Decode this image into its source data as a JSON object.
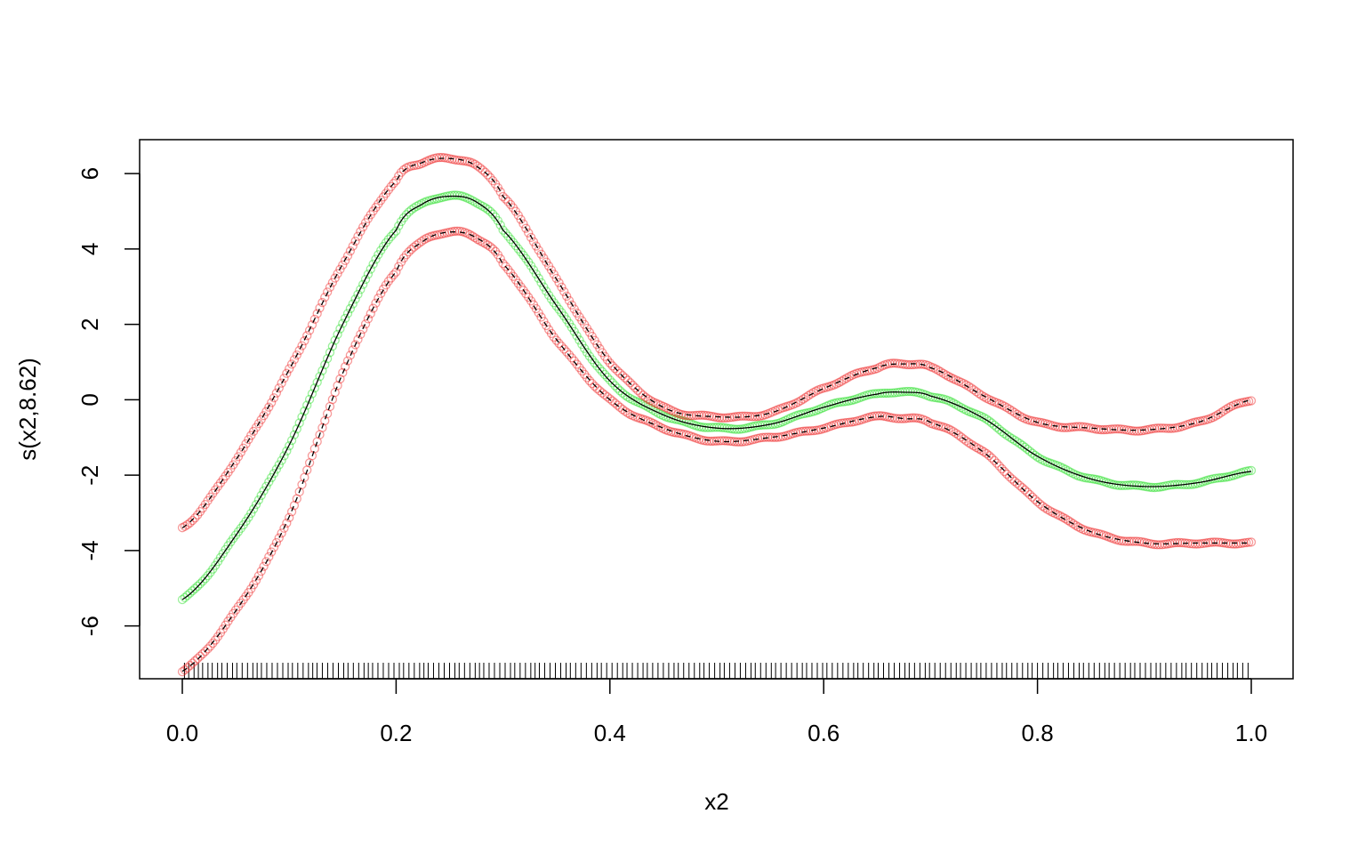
{
  "chart_data": {
    "type": "line",
    "title": "",
    "xlabel": "x2",
    "ylabel": "s(x2,8.62)",
    "xlim": [
      0.0,
      1.0
    ],
    "ylim": [
      -7.4,
      6.9
    ],
    "x_ticks": [
      "0.0",
      "0.2",
      "0.4",
      "0.6",
      "0.8",
      "1.0"
    ],
    "y_ticks": [
      "-6",
      "-4",
      "-2",
      "0",
      "2",
      "4",
      "6"
    ],
    "grid": false,
    "legend": "none",
    "series": [
      {
        "role": "estimate",
        "line_color": "#000000",
        "point_color": "#22dd22",
        "x": [
          0.0,
          0.05,
          0.1,
          0.15,
          0.2,
          0.225,
          0.25,
          0.275,
          0.3,
          0.35,
          0.4,
          0.45,
          0.5,
          0.55,
          0.6,
          0.65,
          0.675,
          0.7,
          0.75,
          0.8,
          0.85,
          0.9,
          0.95,
          1.0
        ],
        "y": [
          -5.3,
          -3.6,
          -1.2,
          2.0,
          4.5,
          5.2,
          5.4,
          5.25,
          4.5,
          2.5,
          0.5,
          -0.4,
          -0.75,
          -0.65,
          -0.2,
          0.15,
          0.2,
          0.1,
          -0.5,
          -1.5,
          -2.1,
          -2.3,
          -2.2,
          -1.9
        ]
      },
      {
        "role": "upper-band",
        "line_color": "#000000",
        "line_style": "dashed",
        "point_color": "#ee2222",
        "x": [
          0.0,
          0.05,
          0.1,
          0.15,
          0.2,
          0.225,
          0.25,
          0.275,
          0.3,
          0.35,
          0.4,
          0.45,
          0.5,
          0.55,
          0.6,
          0.65,
          0.675,
          0.7,
          0.75,
          0.8,
          0.85,
          0.9,
          0.95,
          1.0
        ],
        "y": [
          -3.4,
          -1.6,
          0.8,
          3.6,
          5.8,
          6.3,
          6.4,
          6.2,
          5.4,
          3.2,
          1.0,
          -0.2,
          -0.45,
          -0.35,
          0.3,
          0.85,
          0.95,
          0.85,
          0.1,
          -0.6,
          -0.75,
          -0.8,
          -0.6,
          0.0
        ]
      },
      {
        "role": "lower-band",
        "line_color": "#000000",
        "line_style": "dashed",
        "point_color": "#ee2222",
        "x": [
          0.0,
          0.05,
          0.1,
          0.15,
          0.2,
          0.225,
          0.25,
          0.275,
          0.3,
          0.35,
          0.4,
          0.45,
          0.5,
          0.55,
          0.6,
          0.65,
          0.675,
          0.7,
          0.75,
          0.8,
          0.85,
          0.9,
          0.95,
          1.0
        ],
        "y": [
          -7.2,
          -5.6,
          -3.1,
          0.7,
          3.4,
          4.2,
          4.45,
          4.3,
          3.6,
          1.6,
          0.0,
          -0.75,
          -1.1,
          -1.0,
          -0.75,
          -0.45,
          -0.5,
          -0.6,
          -1.4,
          -2.7,
          -3.5,
          -3.8,
          -3.8,
          -3.8
        ]
      }
    ],
    "rug": [
      0.002,
      0.006,
      0.011,
      0.015,
      0.019,
      0.024,
      0.028,
      0.033,
      0.037,
      0.042,
      0.047,
      0.051,
      0.056,
      0.061,
      0.066,
      0.07,
      0.074,
      0.079,
      0.084,
      0.089,
      0.094,
      0.099,
      0.103,
      0.108,
      0.113,
      0.118,
      0.122,
      0.126,
      0.131,
      0.136,
      0.141,
      0.146,
      0.151,
      0.155,
      0.16,
      0.165,
      0.17,
      0.174,
      0.178,
      0.183,
      0.188,
      0.193,
      0.198,
      0.203,
      0.207,
      0.212,
      0.217,
      0.222,
      0.226,
      0.23,
      0.235,
      0.24,
      0.245,
      0.25,
      0.255,
      0.259,
      0.264,
      0.269,
      0.274,
      0.278,
      0.282,
      0.287,
      0.292,
      0.297,
      0.302,
      0.307,
      0.311,
      0.316,
      0.321,
      0.326,
      0.33,
      0.334,
      0.339,
      0.344,
      0.349,
      0.354,
      0.359,
      0.363,
      0.368,
      0.373,
      0.378,
      0.383,
      0.388,
      0.392,
      0.397,
      0.402,
      0.407,
      0.412,
      0.416,
      0.421,
      0.426,
      0.431,
      0.435,
      0.44,
      0.445,
      0.45,
      0.455,
      0.46,
      0.464,
      0.469,
      0.474,
      0.479,
      0.484,
      0.488,
      0.493,
      0.498,
      0.503,
      0.507,
      0.512,
      0.517,
      0.522,
      0.527,
      0.532,
      0.536,
      0.541,
      0.546,
      0.551,
      0.555,
      0.56,
      0.565,
      0.57,
      0.575,
      0.58,
      0.584,
      0.589,
      0.594,
      0.599,
      0.603,
      0.608,
      0.613,
      0.618,
      0.623,
      0.628,
      0.632,
      0.637,
      0.642,
      0.647,
      0.651,
      0.656,
      0.661,
      0.666,
      0.671,
      0.676,
      0.68,
      0.685,
      0.69,
      0.695,
      0.699,
      0.704,
      0.709,
      0.714,
      0.719,
      0.724,
      0.728,
      0.733,
      0.738,
      0.743,
      0.747,
      0.752,
      0.757,
      0.762,
      0.767,
      0.771,
      0.776,
      0.781,
      0.786,
      0.791,
      0.795,
      0.8,
      0.805,
      0.81,
      0.815,
      0.819,
      0.824,
      0.829,
      0.834,
      0.839,
      0.843,
      0.848,
      0.853,
      0.858,
      0.863,
      0.867,
      0.872,
      0.877,
      0.882,
      0.887,
      0.891,
      0.896,
      0.901,
      0.906,
      0.911,
      0.915,
      0.92,
      0.925,
      0.93,
      0.935,
      0.939,
      0.944,
      0.949,
      0.954,
      0.959,
      0.963,
      0.968,
      0.973,
      0.978,
      0.983,
      0.987,
      0.992,
      0.997
    ]
  }
}
